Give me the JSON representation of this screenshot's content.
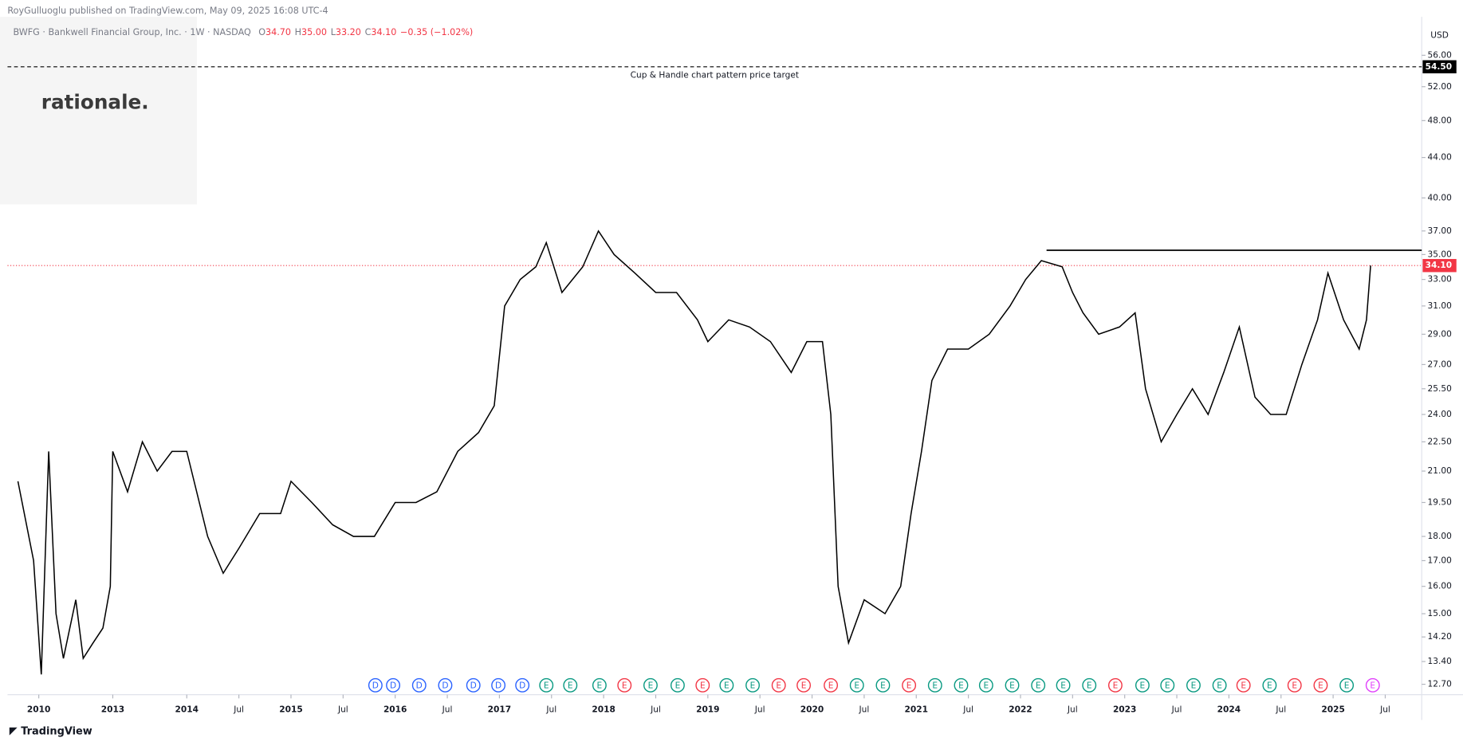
{
  "header": {
    "publisher": "RoyGulluoglu published on TradingView.com, May 09, 2025 16:08 UTC-4",
    "symbol": "BWFG · Bankwell Financial Group, Inc. · 1W · NASDAQ",
    "ohlc": [
      {
        "key": "O",
        "value": "34.70"
      },
      {
        "key": "H",
        "value": "35.00"
      },
      {
        "key": "L",
        "value": "33.20"
      },
      {
        "key": "C",
        "value": "34.10"
      }
    ],
    "change": "−0.35 (−1.02%)",
    "logo": "rationale.",
    "footer": "TradingView",
    "currency": "USD"
  },
  "chart_data": {
    "type": "line",
    "log_scale": true,
    "color": "#000000",
    "x": [
      2009.8,
      2009.95,
      2010.1,
      2010.4,
      2010.7,
      2011,
      2011.5,
      2011.8,
      2012.2,
      2012.6,
      2012.9,
      2013.0,
      2013.2,
      2013.4,
      2013.6,
      2013.8,
      2014.0,
      2014.2,
      2014.35,
      2014.5,
      2014.7,
      2014.9,
      2015.0,
      2015.2,
      2015.4,
      2015.6,
      2015.8,
      2016.0,
      2016.2,
      2016.4,
      2016.6,
      2016.8,
      2016.95,
      2017.05,
      2017.2,
      2017.35,
      2017.45,
      2017.6,
      2017.8,
      2017.95,
      2018.1,
      2018.3,
      2018.5,
      2018.7,
      2018.9,
      2019.0,
      2019.2,
      2019.4,
      2019.6,
      2019.8,
      2019.95,
      2020.1,
      2020.18,
      2020.25,
      2020.35,
      2020.5,
      2020.7,
      2020.85,
      2020.95,
      2021.05,
      2021.15,
      2021.3,
      2021.5,
      2021.7,
      2021.9,
      2022.05,
      2022.2,
      2022.4,
      2022.5,
      2022.6,
      2022.75,
      2022.95,
      2023.1,
      2023.2,
      2023.35,
      2023.5,
      2023.65,
      2023.8,
      2023.95,
      2024.1,
      2024.25,
      2024.4,
      2024.55,
      2024.7,
      2024.85,
      2024.95,
      2025.1,
      2025.25,
      2025.32,
      2025.36
    ],
    "series": [
      {
        "values": [
          20.5,
          17,
          13,
          22,
          15,
          13.5,
          15.5,
          13.5,
          14,
          14.5,
          16,
          22,
          20,
          22.5,
          21,
          22,
          22,
          18,
          16.5,
          17.5,
          19,
          19,
          20.5,
          19.5,
          18.5,
          18,
          18,
          19.5,
          19.5,
          20,
          22,
          23,
          24.5,
          31,
          33,
          34,
          36,
          32,
          34,
          37,
          35,
          33.5,
          32,
          32,
          30,
          28.5,
          30,
          29.5,
          28.5,
          26.5,
          28.5,
          28.5,
          24,
          16,
          14,
          15.5,
          15,
          16,
          19,
          22,
          26,
          28,
          28,
          29,
          31,
          33,
          34.5,
          34,
          32,
          30.5,
          29,
          29.5,
          30.5,
          25.5,
          22.5,
          24,
          25.5,
          24,
          26.5,
          29.5,
          25,
          24,
          24,
          27,
          30,
          33.5,
          30,
          28,
          30,
          34.1
        ]
      }
    ],
    "xlim": [
      2009.7,
      2025.85
    ],
    "xticks": [
      {
        "value": 2010,
        "label": "2010"
      },
      {
        "value": 2013,
        "label": "2013"
      },
      {
        "value": 2014,
        "label": "2014"
      },
      {
        "value": 2014.5,
        "label": "Jul"
      },
      {
        "value": 2015,
        "label": "2015"
      },
      {
        "value": 2015.5,
        "label": "Jul"
      },
      {
        "value": 2016,
        "label": "2016"
      },
      {
        "value": 2016.5,
        "label": "Jul"
      },
      {
        "value": 2017,
        "label": "2017"
      },
      {
        "value": 2017.5,
        "label": "Jul"
      },
      {
        "value": 2018,
        "label": "2018"
      },
      {
        "value": 2018.5,
        "label": "Jul"
      },
      {
        "value": 2019,
        "label": "2019"
      },
      {
        "value": 2019.5,
        "label": "Jul"
      },
      {
        "value": 2020,
        "label": "2020"
      },
      {
        "value": 2020.5,
        "label": "Jul"
      },
      {
        "value": 2021,
        "label": "2021"
      },
      {
        "value": 2021.5,
        "label": "Jul"
      },
      {
        "value": 2022,
        "label": "2022"
      },
      {
        "value": 2022.5,
        "label": "Jul"
      },
      {
        "value": 2023,
        "label": "2023"
      },
      {
        "value": 2023.5,
        "label": "Jul"
      },
      {
        "value": 2024,
        "label": "2024"
      },
      {
        "value": 2024.5,
        "label": "Jul"
      },
      {
        "value": 2025,
        "label": "2025"
      },
      {
        "value": 2025.5,
        "label": "Jul"
      }
    ],
    "ylim": [
      12.42,
      57.5
    ],
    "yticks": [
      {
        "value": 12.7,
        "label": "12.70"
      },
      {
        "value": 13.4,
        "label": "13.40"
      },
      {
        "value": 14.2,
        "label": "14.20"
      },
      {
        "value": 15,
        "label": "15.00"
      },
      {
        "value": 16,
        "label": "16.00"
      },
      {
        "value": 17,
        "label": "17.00"
      },
      {
        "value": 18,
        "label": "18.00"
      },
      {
        "value": 19.5,
        "label": "19.50"
      },
      {
        "value": 21,
        "label": "21.00"
      },
      {
        "value": 22.5,
        "label": "22.50"
      },
      {
        "value": 24,
        "label": "24.00"
      },
      {
        "value": 25.5,
        "label": "25.50"
      },
      {
        "value": 27,
        "label": "27.00"
      },
      {
        "value": 29,
        "label": "29.00"
      },
      {
        "value": 31,
        "label": "31.00"
      },
      {
        "value": 33,
        "label": "33.00"
      },
      {
        "value": 35,
        "label": "35.00"
      },
      {
        "value": 37,
        "label": "37.00"
      },
      {
        "value": 40,
        "label": "40.00"
      },
      {
        "value": 44,
        "label": "44.00"
      },
      {
        "value": 48,
        "label": "48.00"
      },
      {
        "value": 52,
        "label": "52.00"
      },
      {
        "value": 56,
        "label": "56.00"
      }
    ],
    "target": {
      "value": 54.5,
      "label": "54.50",
      "text": "Cup & Handle chart pattern price target",
      "color": "#000000"
    },
    "last_price": {
      "value": 34.1,
      "label": "34.10",
      "color": "#f23645"
    },
    "resistance": {
      "value": 35.35,
      "x": [
        2022.25,
        2025.85
      ],
      "color": "#000000"
    },
    "events": [
      {
        "x": 2015.81,
        "label": "D",
        "color": "#2962ff"
      },
      {
        "x": 2015.98,
        "label": "D",
        "color": "#2962ff"
      },
      {
        "x": 2016.23,
        "label": "D",
        "color": "#2962ff"
      },
      {
        "x": 2016.48,
        "label": "D",
        "color": "#2962ff"
      },
      {
        "x": 2016.75,
        "label": "D",
        "color": "#2962ff"
      },
      {
        "x": 2016.99,
        "label": "D",
        "color": "#2962ff"
      },
      {
        "x": 2017.22,
        "label": "D",
        "color": "#2962ff"
      },
      {
        "x": 2017.45,
        "label": "E",
        "color": "#089981"
      },
      {
        "x": 2017.68,
        "label": "E",
        "color": "#089981"
      },
      {
        "x": 2017.96,
        "label": "E",
        "color": "#089981"
      },
      {
        "x": 2018.2,
        "label": "E",
        "color": "#f23645"
      },
      {
        "x": 2018.45,
        "label": "E",
        "color": "#089981"
      },
      {
        "x": 2018.71,
        "label": "E",
        "color": "#089981"
      },
      {
        "x": 2018.95,
        "label": "E",
        "color": "#f23645"
      },
      {
        "x": 2019.18,
        "label": "E",
        "color": "#089981"
      },
      {
        "x": 2019.43,
        "label": "E",
        "color": "#089981"
      },
      {
        "x": 2019.68,
        "label": "E",
        "color": "#f23645"
      },
      {
        "x": 2019.92,
        "label": "E",
        "color": "#f23645"
      },
      {
        "x": 2020.18,
        "label": "E",
        "color": "#f23645"
      },
      {
        "x": 2020.43,
        "label": "E",
        "color": "#089981"
      },
      {
        "x": 2020.68,
        "label": "E",
        "color": "#089981"
      },
      {
        "x": 2020.93,
        "label": "E",
        "color": "#f23645"
      },
      {
        "x": 2021.18,
        "label": "E",
        "color": "#089981"
      },
      {
        "x": 2021.43,
        "label": "E",
        "color": "#089981"
      },
      {
        "x": 2021.67,
        "label": "E",
        "color": "#089981"
      },
      {
        "x": 2021.92,
        "label": "E",
        "color": "#089981"
      },
      {
        "x": 2022.17,
        "label": "E",
        "color": "#089981"
      },
      {
        "x": 2022.41,
        "label": "E",
        "color": "#089981"
      },
      {
        "x": 2022.66,
        "label": "E",
        "color": "#089981"
      },
      {
        "x": 2022.91,
        "label": "E",
        "color": "#f23645"
      },
      {
        "x": 2023.17,
        "label": "E",
        "color": "#089981"
      },
      {
        "x": 2023.41,
        "label": "E",
        "color": "#089981"
      },
      {
        "x": 2023.66,
        "label": "E",
        "color": "#089981"
      },
      {
        "x": 2023.91,
        "label": "E",
        "color": "#089981"
      },
      {
        "x": 2024.14,
        "label": "E",
        "color": "#f23645"
      },
      {
        "x": 2024.39,
        "label": "E",
        "color": "#089981"
      },
      {
        "x": 2024.63,
        "label": "E",
        "color": "#f23645"
      },
      {
        "x": 2024.88,
        "label": "E",
        "color": "#f23645"
      },
      {
        "x": 2025.13,
        "label": "E",
        "color": "#089981"
      },
      {
        "x": 2025.38,
        "label": "E",
        "color": "#e040fb"
      }
    ]
  }
}
